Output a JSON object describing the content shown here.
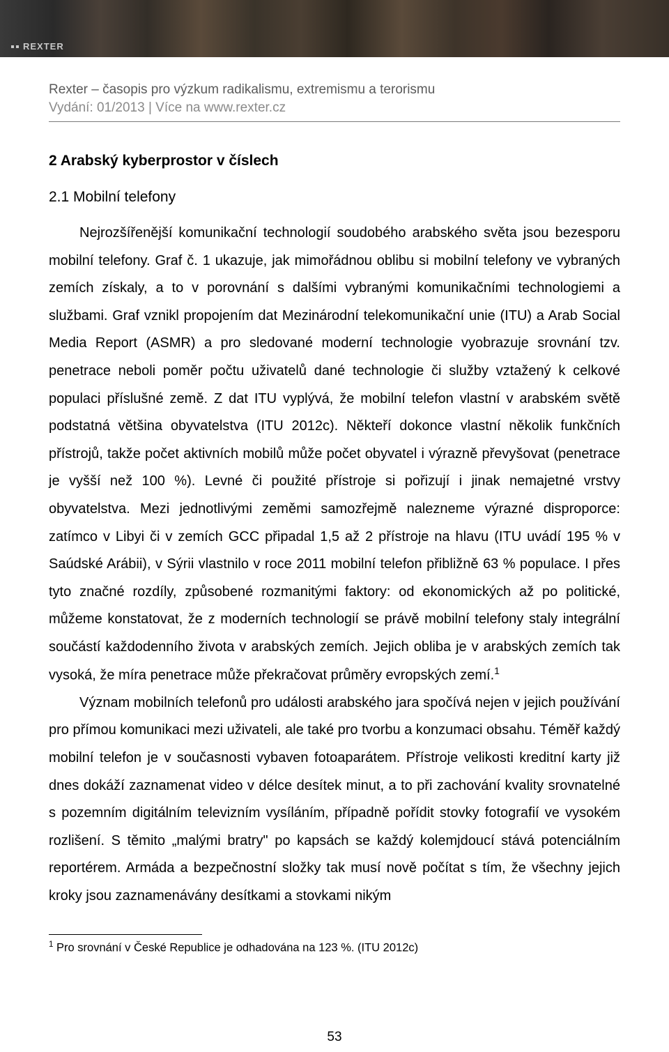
{
  "banner": {
    "brand": "REXTER"
  },
  "meta": {
    "journal_line": "Rexter – časopis pro výzkum radikalismu, extremismu a terorismu",
    "edition_line": "Vydání: 01/2013 | Více na www.rexter.cz"
  },
  "headings": {
    "h2": "2  Arabský kyberprostor v číslech",
    "h3": "2.1 Mobilní telefony"
  },
  "paragraphs": {
    "p1": "Nejrozšířenější komunikační technologií soudobého arabského světa jsou bezesporu mobilní telefony. Graf č. 1 ukazuje, jak mimořádnou oblibu si mobilní telefony ve vybraných zemích získaly, a to v porovnání s dalšími vybranými komunikačními technologiemi a službami. Graf vznikl propojením dat Mezinárodní telekomunikační unie (ITU) a Arab Social Media Report (ASMR) a pro sledované moderní technologie vyobrazuje srovnání tzv. penetrace neboli poměr počtu uživatelů dané technologie či služby vztažený k celkové populaci příslušné země. Z dat ITU vyplývá, že mobilní telefon vlastní v arabském světě podstatná většina obyvatelstva (ITU 2012c). Někteří dokonce vlastní několik funkčních přístrojů, takže počet aktivních mobilů může počet obyvatel i výrazně převyšovat (penetrace je vyšší než 100 %). Levné či použité přístroje si pořizují i jinak nemajetné vrstvy obyvatelstva. Mezi jednotlivými zeměmi samozřejmě nalezneme výrazné disproporce: zatímco v Libyi či v zemích GCC připadal 1,5 až 2 přístroje na hlavu (ITU uvádí 195 % v Saúdské Arábii), v Sýrii vlastnilo v roce 2011 mobilní telefon přibližně 63 % populace. I přes tyto značné rozdíly, způsobené rozmanitými faktory: od ekonomických až po politické, můžeme konstatovat, že z moderních technologií se právě mobilní telefony staly integrální součástí každodenního života v arabských zemích. Jejich obliba je v arabských zemích tak vysoká, že míra penetrace může překračovat průměry evropských zemí.",
    "p1_sup": "1",
    "p2": "Význam mobilních telefonů pro události arabského jara spočívá nejen v jejich používání pro přímou komunikaci mezi uživateli, ale také pro tvorbu a konzumaci obsahu. Téměř každý mobilní telefon je v současnosti vybaven fotoaparátem. Přístroje velikosti kreditní karty již dnes dokáží zaznamenat video v délce desítek minut, a to při zachování kvality srovnatelné s pozemním digitálním televizním vysíláním, případně pořídit stovky fotografií ve vysokém rozlišení. S těmito „malými bratry\" po kapsách se každý kolemjdoucí stává potenciálním reportérem. Armáda a bezpečnostní složky tak musí nově počítat s tím, že všechny jejich kroky jsou zaznamenávány desítkami a stovkami nikým"
  },
  "footnote": {
    "marker": "1",
    "text": " Pro srovnání v České Republice je odhadována na 123 %. (ITU 2012c)"
  },
  "pagenum": "53",
  "colors": {
    "meta_line1": "#5a5a5a",
    "meta_line2": "#8a8a8a",
    "text": "#000000",
    "hr": "#7a7a7a",
    "banner_text": "#c8c8c8"
  }
}
